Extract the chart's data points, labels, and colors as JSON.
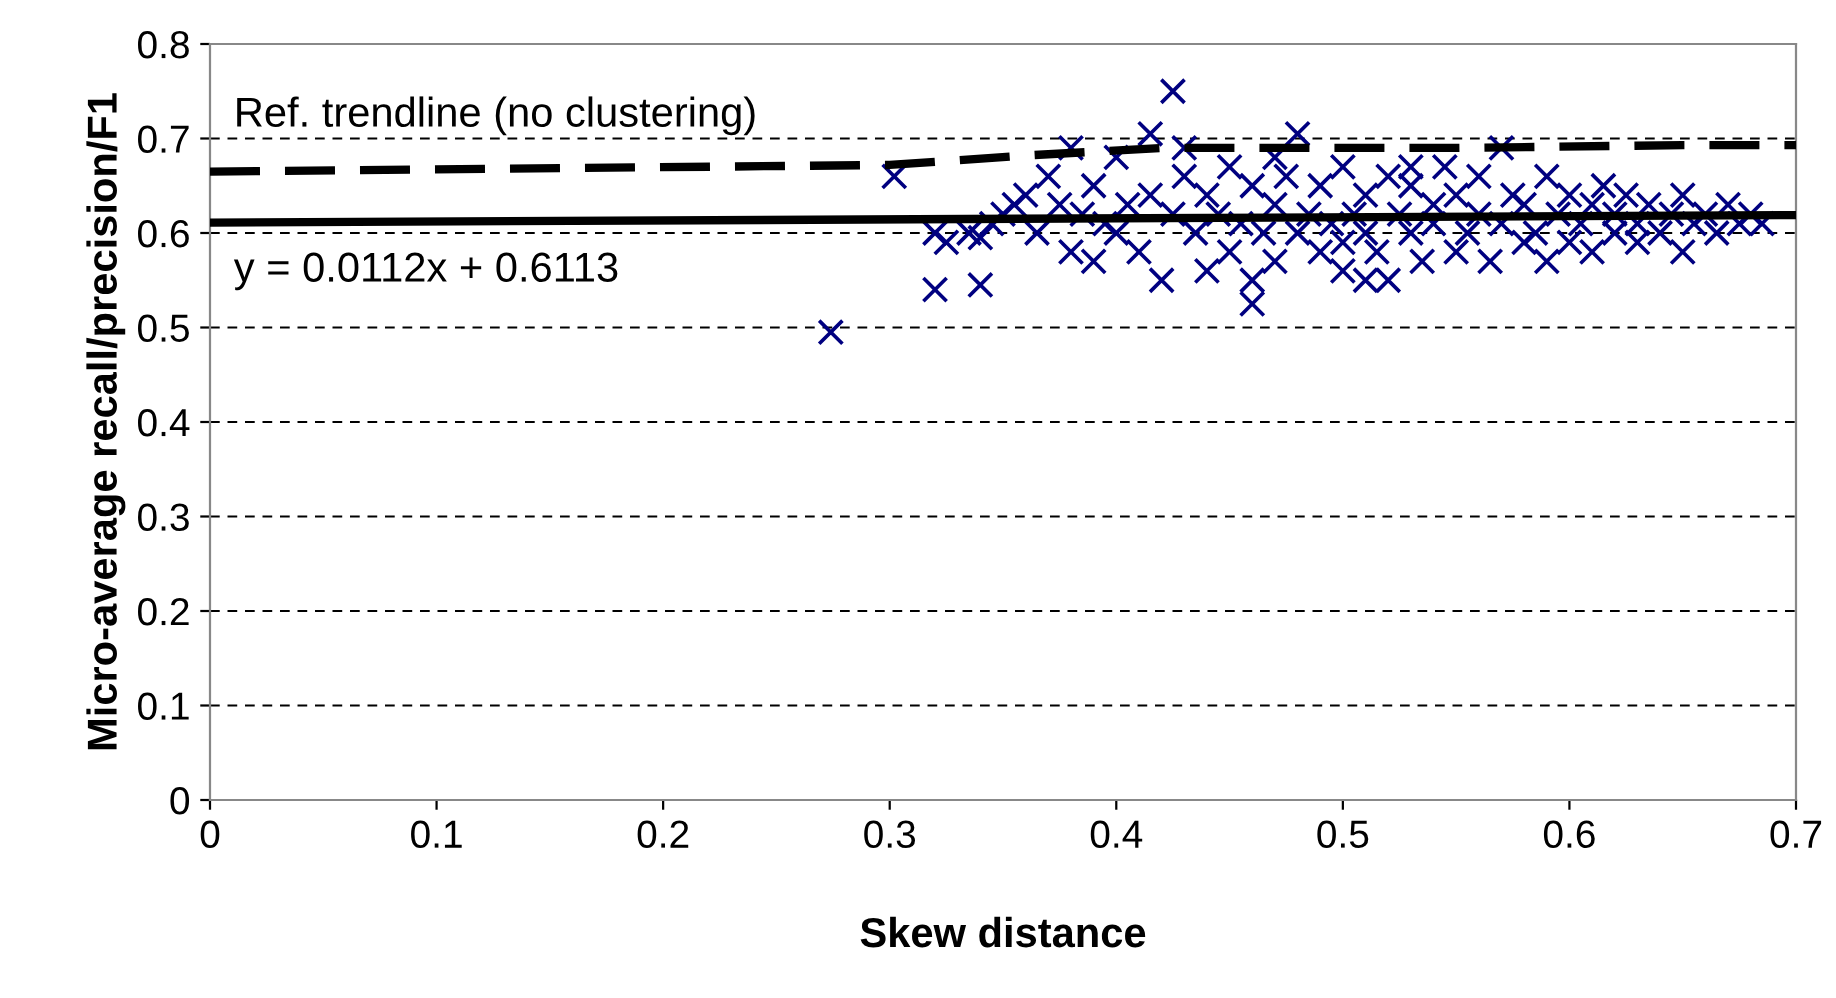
{
  "chart_data": {
    "type": "scatter",
    "xlabel": "Skew distance",
    "ylabel": "Micro-average recall/precision/F1",
    "xlim": [
      0,
      0.7
    ],
    "xticks": [
      0,
      0.1,
      0.2,
      0.3,
      0.4,
      0.5,
      0.6,
      0.7
    ],
    "ylim": [
      0,
      0.8
    ],
    "yticks": [
      0,
      0.1,
      0.2,
      0.3,
      0.4,
      0.5,
      0.6,
      0.7,
      0.8
    ],
    "grid": "y",
    "legend": false,
    "series": [
      {
        "marker": "cross",
        "color": "#000080",
        "x": [
          0.274,
          0.302,
          0.32,
          0.34,
          0.32,
          0.325,
          0.335,
          0.34,
          0.345,
          0.35,
          0.355,
          0.36,
          0.365,
          0.37,
          0.375,
          0.38,
          0.38,
          0.385,
          0.39,
          0.39,
          0.395,
          0.4,
          0.4,
          0.405,
          0.41,
          0.415,
          0.415,
          0.42,
          0.425,
          0.425,
          0.43,
          0.435,
          0.44,
          0.44,
          0.445,
          0.45,
          0.45,
          0.455,
          0.46,
          0.46,
          0.465,
          0.47,
          0.47,
          0.475,
          0.48,
          0.48,
          0.485,
          0.49,
          0.49,
          0.495,
          0.5,
          0.5,
          0.505,
          0.51,
          0.51,
          0.515,
          0.52,
          0.52,
          0.525,
          0.53,
          0.53,
          0.535,
          0.54,
          0.54,
          0.545,
          0.55,
          0.55,
          0.555,
          0.56,
          0.56,
          0.565,
          0.57,
          0.57,
          0.575,
          0.58,
          0.58,
          0.585,
          0.59,
          0.59,
          0.595,
          0.6,
          0.6,
          0.605,
          0.61,
          0.61,
          0.615,
          0.62,
          0.62,
          0.625,
          0.63,
          0.63,
          0.635,
          0.64,
          0.645,
          0.65,
          0.65,
          0.655,
          0.66,
          0.665,
          0.67,
          0.675,
          0.68,
          0.685,
          0.43,
          0.46,
          0.5,
          0.53,
          0.47,
          0.51
        ],
        "values": [
          0.495,
          0.66,
          0.54,
          0.545,
          0.6,
          0.59,
          0.6,
          0.595,
          0.61,
          0.62,
          0.63,
          0.64,
          0.6,
          0.66,
          0.63,
          0.58,
          0.69,
          0.62,
          0.57,
          0.65,
          0.61,
          0.6,
          0.68,
          0.63,
          0.58,
          0.705,
          0.64,
          0.55,
          0.75,
          0.62,
          0.66,
          0.6,
          0.56,
          0.64,
          0.62,
          0.67,
          0.58,
          0.61,
          0.525,
          0.65,
          0.6,
          0.63,
          0.57,
          0.66,
          0.705,
          0.6,
          0.62,
          0.58,
          0.65,
          0.61,
          0.56,
          0.67,
          0.62,
          0.6,
          0.64,
          0.58,
          0.66,
          0.55,
          0.62,
          0.6,
          0.65,
          0.57,
          0.63,
          0.61,
          0.67,
          0.58,
          0.64,
          0.6,
          0.62,
          0.66,
          0.57,
          0.69,
          0.61,
          0.64,
          0.59,
          0.63,
          0.6,
          0.66,
          0.57,
          0.62,
          0.64,
          0.59,
          0.61,
          0.63,
          0.58,
          0.65,
          0.6,
          0.62,
          0.64,
          0.59,
          0.61,
          0.63,
          0.6,
          0.62,
          0.64,
          0.58,
          0.61,
          0.62,
          0.6,
          0.63,
          0.61,
          0.62,
          0.61,
          0.69,
          0.55,
          0.59,
          0.67,
          0.68,
          0.55
        ]
      },
      {
        "type": "line",
        "line_style": "dashed",
        "color": "#000000",
        "x": [
          0,
          0.3,
          0.36,
          0.42,
          0.55,
          0.65,
          0.7
        ],
        "values": [
          0.665,
          0.672,
          0.682,
          0.69,
          0.69,
          0.693,
          0.693
        ]
      },
      {
        "type": "line",
        "line_style": "solid",
        "color": "#000000",
        "x": [
          0,
          0.7
        ],
        "values": [
          0.611,
          0.619
        ]
      }
    ],
    "annotations": [
      "Ref. trendline (no clustering)",
      "y = 0.0112x + 0.6113"
    ]
  }
}
